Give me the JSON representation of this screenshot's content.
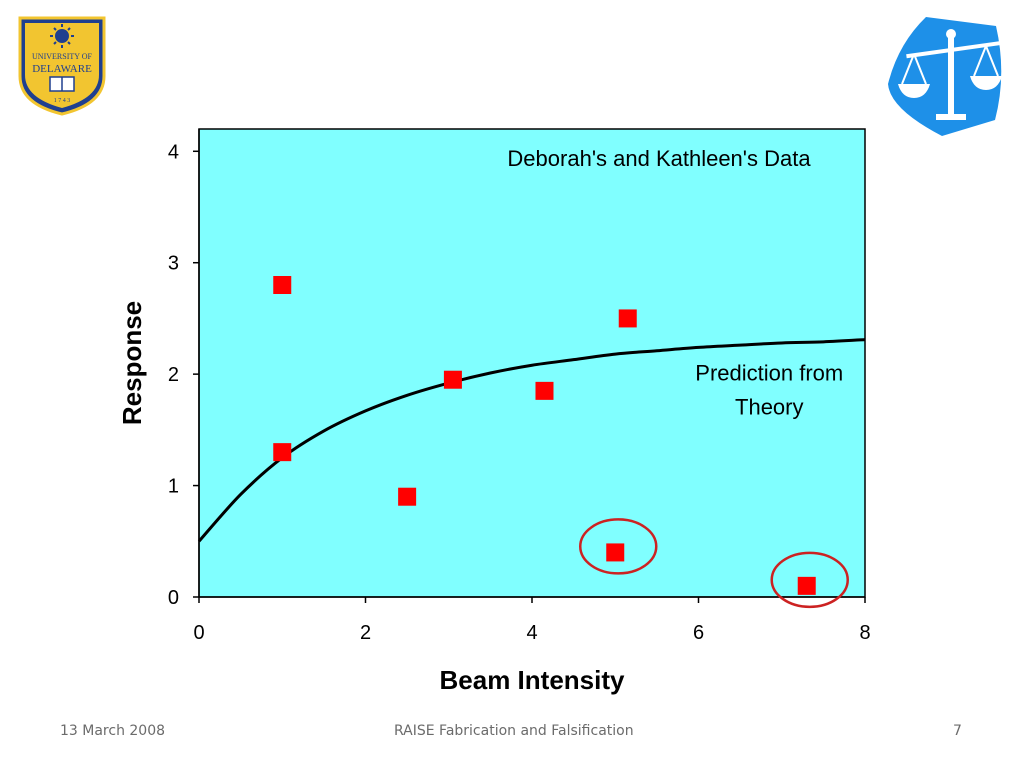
{
  "footer": {
    "date": "13 March 2008",
    "title": "RAISE Fabrication and Falsification",
    "page": "7"
  },
  "logos": {
    "left": {
      "icon": "university-of-delaware-seal-icon",
      "text_lines": [
        "UNIVERSITY OF",
        "DELAWARE",
        "1 7 4 3"
      ]
    },
    "right": {
      "icon": "scales-of-justice-icon"
    }
  },
  "colors": {
    "plot_background": "#80FFFF",
    "marker": "#FF0000",
    "curve": "#000000",
    "circle": "#CC2222",
    "scales_logo": "#1E90E8",
    "ud_blue": "#1F3F8F",
    "ud_gold": "#F2C530"
  },
  "chart_data": {
    "type": "scatter",
    "title": "Deborah's and Kathleen's Data",
    "xlabel": "Beam Intensity",
    "ylabel": "Response",
    "xlim": [
      0,
      8
    ],
    "ylim": [
      0,
      4.2
    ],
    "xticks": [
      0,
      2,
      4,
      6,
      8
    ],
    "yticks": [
      0,
      1,
      2,
      3,
      4
    ],
    "grid": false,
    "series": [
      {
        "marker": "square",
        "points": [
          {
            "x": 1.0,
            "y": 2.8
          },
          {
            "x": 1.0,
            "y": 1.3
          },
          {
            "x": 2.5,
            "y": 0.9
          },
          {
            "x": 3.05,
            "y": 1.95
          },
          {
            "x": 4.15,
            "y": 1.85
          },
          {
            "x": 5.15,
            "y": 2.5
          },
          {
            "x": 5.0,
            "y": 0.4
          },
          {
            "x": 7.3,
            "y": 0.1
          }
        ]
      }
    ],
    "curve": {
      "x": [
        0,
        0.5,
        1,
        1.5,
        2,
        2.5,
        3,
        3.5,
        4,
        4.5,
        5,
        5.5,
        6,
        6.5,
        7,
        7.5,
        8
      ],
      "y": [
        0.5,
        0.92,
        1.25,
        1.49,
        1.67,
        1.81,
        1.92,
        2.01,
        2.08,
        2.13,
        2.18,
        2.21,
        2.24,
        2.26,
        2.28,
        2.29,
        2.31
      ]
    },
    "annotations": [
      {
        "text_lines": [
          "Prediction from",
          "Theory"
        ],
        "x": 6.85,
        "y": 1.95
      }
    ],
    "highlighted_points": [
      {
        "x": 5.0,
        "y": 0.4
      },
      {
        "x": 7.3,
        "y": 0.1
      }
    ]
  }
}
